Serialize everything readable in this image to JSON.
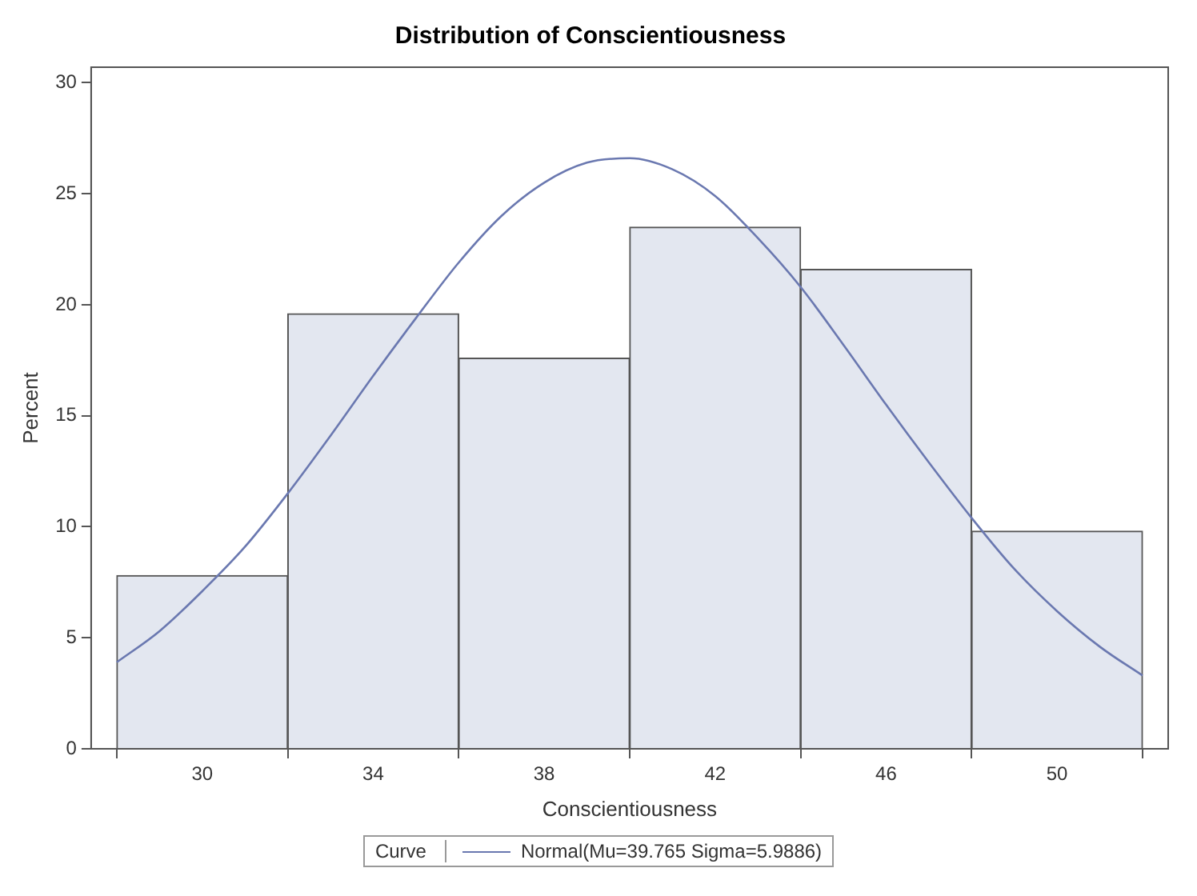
{
  "chart_data": {
    "type": "histogram",
    "title": "Distribution of Conscientiousness",
    "xlabel": "Conscientiousness",
    "ylabel": "Percent",
    "bins": [
      28,
      32,
      36,
      40,
      44,
      48,
      52
    ],
    "values": [
      7.8,
      19.6,
      17.6,
      23.5,
      21.6,
      9.8
    ],
    "color": "#e3e7f0",
    "series": [
      {
        "type": "line",
        "name": "Normal(Mu=39.765 Sigma=5.9886)",
        "color": "#6a78b0",
        "x": [
          28,
          29,
          30,
          31,
          32,
          33,
          34,
          35,
          36,
          37,
          38,
          39,
          40,
          41,
          42,
          43,
          44,
          45,
          46,
          47,
          48,
          49,
          50,
          51,
          52
        ],
        "values": [
          3.9,
          5.3,
          7.1,
          9.1,
          11.5,
          14.1,
          16.8,
          19.4,
          21.9,
          24.0,
          25.5,
          26.4,
          26.6,
          26.1,
          24.9,
          23.0,
          20.8,
          18.2,
          15.5,
          12.9,
          10.4,
          8.1,
          6.2,
          4.6,
          3.3
        ]
      }
    ],
    "legend_title": "Curve",
    "legend": "bottom",
    "marker": "none",
    "xlim": [
      27.4,
      52.6
    ],
    "xticks": [
      30,
      34,
      38,
      42,
      46,
      50
    ],
    "ylim": [
      0,
      30.7
    ],
    "yticks": [
      0,
      5,
      10,
      15,
      20,
      25,
      30
    ],
    "grid": false
  }
}
